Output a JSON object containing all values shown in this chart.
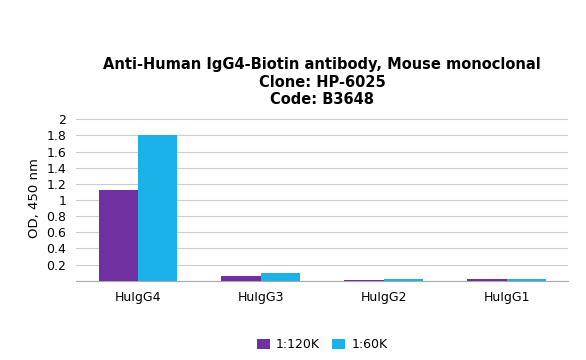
{
  "title_line1": "Anti-Human IgG4-Biotin antibody, Mouse monoclonal",
  "title_line2": "Clone: HP-6025",
  "title_line3": "Code: B3648",
  "categories": [
    "HuIgG4",
    "HuIgG3",
    "HuIgG2",
    "HuIgG1"
  ],
  "series": [
    {
      "label": "1:120K",
      "color": "#7030a0",
      "values": [
        1.13,
        0.055,
        0.012,
        0.018
      ]
    },
    {
      "label": "1:60K",
      "color": "#1ab2e8",
      "values": [
        1.8,
        0.095,
        0.018,
        0.025
      ]
    }
  ],
  "ylabel": "OD, 450 nm",
  "ylim": [
    0,
    2.05
  ],
  "yticks": [
    0,
    0.2,
    0.4,
    0.6,
    0.8,
    1.0,
    1.2,
    1.4,
    1.6,
    1.8,
    2.0
  ],
  "ytick_labels": [
    "",
    "0.2",
    "0.4",
    "0.6",
    "0.8",
    "1",
    "1.2",
    "1.4",
    "1.6",
    "1.8",
    "2"
  ],
  "background_color": "#ffffff",
  "grid_color": "#cccccc",
  "bar_width": 0.32,
  "title_fontsize": 10.5,
  "axis_fontsize": 9.5,
  "tick_fontsize": 9,
  "legend_fontsize": 9
}
